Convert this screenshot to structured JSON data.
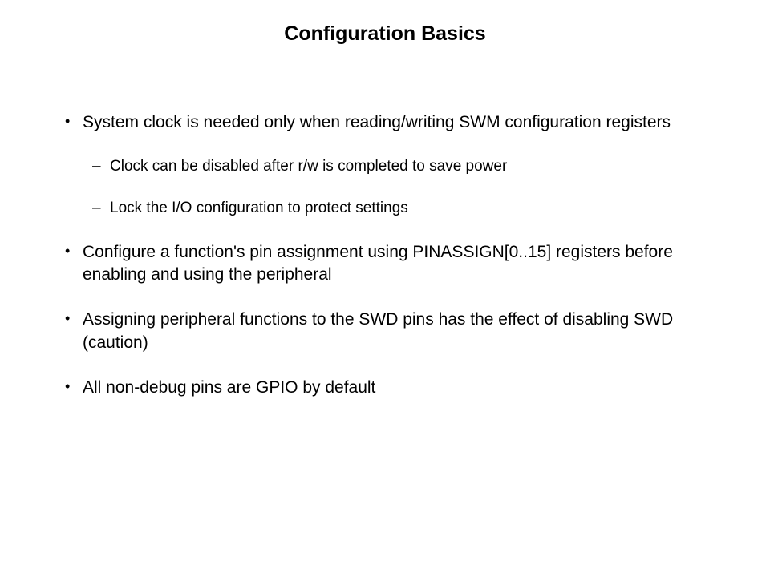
{
  "slide": {
    "title": "Configuration Basics",
    "background_color": "#ffffff",
    "text_color": "#000000",
    "title_fontsize": 25,
    "body_fontsize": 21,
    "sub_fontsize": 19,
    "bullets": [
      {
        "text": "System clock is needed only when reading/writing SWM configuration registers",
        "sub": [
          "Clock can be disabled after r/w is completed to save power",
          "Lock the I/O configuration to protect settings"
        ]
      },
      {
        "text": "Configure a function's pin assignment using PINASSIGN[0..15] registers before enabling and using the peripheral",
        "sub": []
      },
      {
        "text": "Assigning peripheral functions to the SWD pins has the effect of disabling SWD (caution)",
        "sub": []
      },
      {
        "text": "All non-debug pins are GPIO by default",
        "sub": []
      }
    ]
  }
}
